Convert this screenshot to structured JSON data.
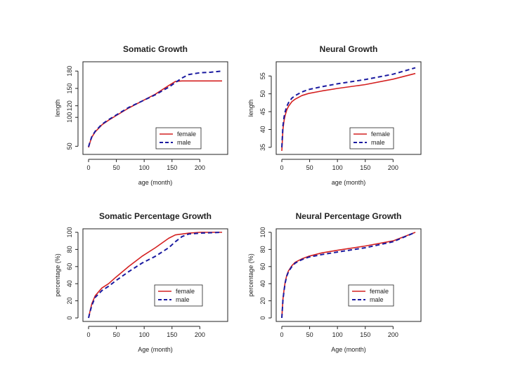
{
  "colors": {
    "female": "#d42020",
    "male": "#1a1aa0"
  },
  "chart_data": [
    {
      "type": "line",
      "title": "Somatic Growth",
      "xlabel": "age (month)",
      "ylabel": "length",
      "xlim": [
        0,
        240
      ],
      "ylim": [
        42,
        190
      ],
      "xticks": [
        "0",
        "50",
        "100",
        "150",
        "200"
      ],
      "xtickvals": [
        0,
        50,
        100,
        150,
        200
      ],
      "yticks": [
        "50",
        "100",
        "120",
        "150",
        "180"
      ],
      "ytickvals": [
        50,
        100,
        120,
        150,
        180
      ],
      "legend": [
        "female",
        "male"
      ],
      "series": [
        {
          "name": "female",
          "style": "solid",
          "x": [
            0,
            3,
            6,
            12,
            24,
            36,
            48,
            72,
            96,
            120,
            144,
            156,
            168,
            180,
            200,
            220,
            240
          ],
          "y": [
            48,
            58,
            66,
            75,
            87,
            95,
            102,
            116,
            128,
            140,
            155,
            162,
            163,
            163,
            163,
            163,
            163
          ]
        },
        {
          "name": "male",
          "style": "dashed",
          "x": [
            0,
            3,
            6,
            12,
            24,
            36,
            48,
            72,
            96,
            120,
            144,
            156,
            168,
            180,
            200,
            220,
            240
          ],
          "y": [
            49,
            59,
            67,
            76,
            88,
            96,
            103,
            117,
            128,
            139,
            152,
            160,
            168,
            174,
            177,
            178,
            180
          ]
        }
      ]
    },
    {
      "type": "line",
      "title": "Neural Growth",
      "xlabel": "age (month)",
      "ylabel": "length",
      "xlim": [
        0,
        240
      ],
      "ylim": [
        34,
        58
      ],
      "xticks": [
        "0",
        "50",
        "100",
        "150",
        "200"
      ],
      "xtickvals": [
        0,
        50,
        100,
        150,
        200
      ],
      "yticks": [
        "35",
        "40",
        "45",
        "50",
        "55"
      ],
      "ytickvals": [
        35,
        40,
        45,
        50,
        55
      ],
      "legend": [
        "female",
        "male"
      ],
      "series": [
        {
          "name": "female",
          "style": "solid",
          "x": [
            0,
            2,
            4,
            6,
            9,
            12,
            18,
            24,
            36,
            48,
            72,
            100,
            150,
            200,
            240
          ],
          "y": [
            34,
            40,
            42.5,
            44,
            45.5,
            46.5,
            47.8,
            48.5,
            49.5,
            50.1,
            50.8,
            51.5,
            52.6,
            54.1,
            55.7
          ]
        },
        {
          "name": "male",
          "style": "dashed",
          "x": [
            0,
            2,
            4,
            6,
            9,
            12,
            18,
            24,
            36,
            48,
            72,
            100,
            150,
            200,
            240
          ],
          "y": [
            35,
            41,
            43.5,
            45,
            46.5,
            47.5,
            48.8,
            49.5,
            50.5,
            51.2,
            52,
            52.8,
            54,
            55.5,
            57.3
          ]
        }
      ]
    },
    {
      "type": "line",
      "title": "Somatic Percentage Growth",
      "xlabel": "Age (month)",
      "ylabel": "percentage (%)",
      "xlim": [
        0,
        240
      ],
      "ylim": [
        0,
        100
      ],
      "xticks": [
        "0",
        "50",
        "100",
        "150",
        "200"
      ],
      "xtickvals": [
        0,
        50,
        100,
        150,
        200
      ],
      "yticks": [
        "0",
        "20",
        "40",
        "60",
        "80",
        "100"
      ],
      "ytickvals": [
        0,
        20,
        40,
        60,
        80,
        100
      ],
      "legend": [
        "female",
        "male"
      ],
      "series": [
        {
          "name": "female",
          "style": "solid",
          "x": [
            0,
            3,
            6,
            12,
            24,
            36,
            48,
            72,
            96,
            120,
            144,
            156,
            168,
            180,
            200,
            240
          ],
          "y": [
            0,
            9,
            17,
            26,
            35,
            40,
            47,
            60,
            72,
            82,
            93,
            97,
            98,
            99,
            100,
            100
          ]
        },
        {
          "name": "male",
          "style": "dashed",
          "x": [
            0,
            3,
            6,
            12,
            24,
            36,
            48,
            72,
            96,
            120,
            144,
            156,
            168,
            180,
            200,
            240
          ],
          "y": [
            0,
            8,
            15,
            24,
            32,
            37,
            43,
            54,
            64,
            72,
            82,
            89,
            95,
            98,
            99,
            100
          ]
        }
      ]
    },
    {
      "type": "line",
      "title": "Neural Percentage Growth",
      "xlabel": "Age (month)",
      "ylabel": "percentage (%)",
      "xlim": [
        0,
        240
      ],
      "ylim": [
        0,
        100
      ],
      "xticks": [
        "0",
        "50",
        "100",
        "150",
        "200"
      ],
      "xtickvals": [
        0,
        50,
        100,
        150,
        200
      ],
      "yticks": [
        "0",
        "20",
        "40",
        "60",
        "80",
        "100"
      ],
      "ytickvals": [
        0,
        20,
        40,
        60,
        80,
        100
      ],
      "legend": [
        "female",
        "male"
      ],
      "series": [
        {
          "name": "female",
          "style": "solid",
          "x": [
            0,
            2,
            4,
            6,
            9,
            12,
            18,
            24,
            36,
            48,
            72,
            100,
            150,
            200,
            240
          ],
          "y": [
            0,
            22,
            33,
            42,
            50,
            55,
            61,
            65,
            69,
            72,
            76,
            79,
            84,
            90,
            100
          ]
        },
        {
          "name": "male",
          "style": "dashed",
          "x": [
            0,
            2,
            4,
            6,
            9,
            12,
            18,
            24,
            36,
            48,
            72,
            100,
            150,
            200,
            240
          ],
          "y": [
            0,
            21,
            32,
            41,
            49,
            54,
            60,
            64,
            68,
            71,
            74,
            77,
            82,
            89,
            100
          ]
        }
      ]
    }
  ]
}
